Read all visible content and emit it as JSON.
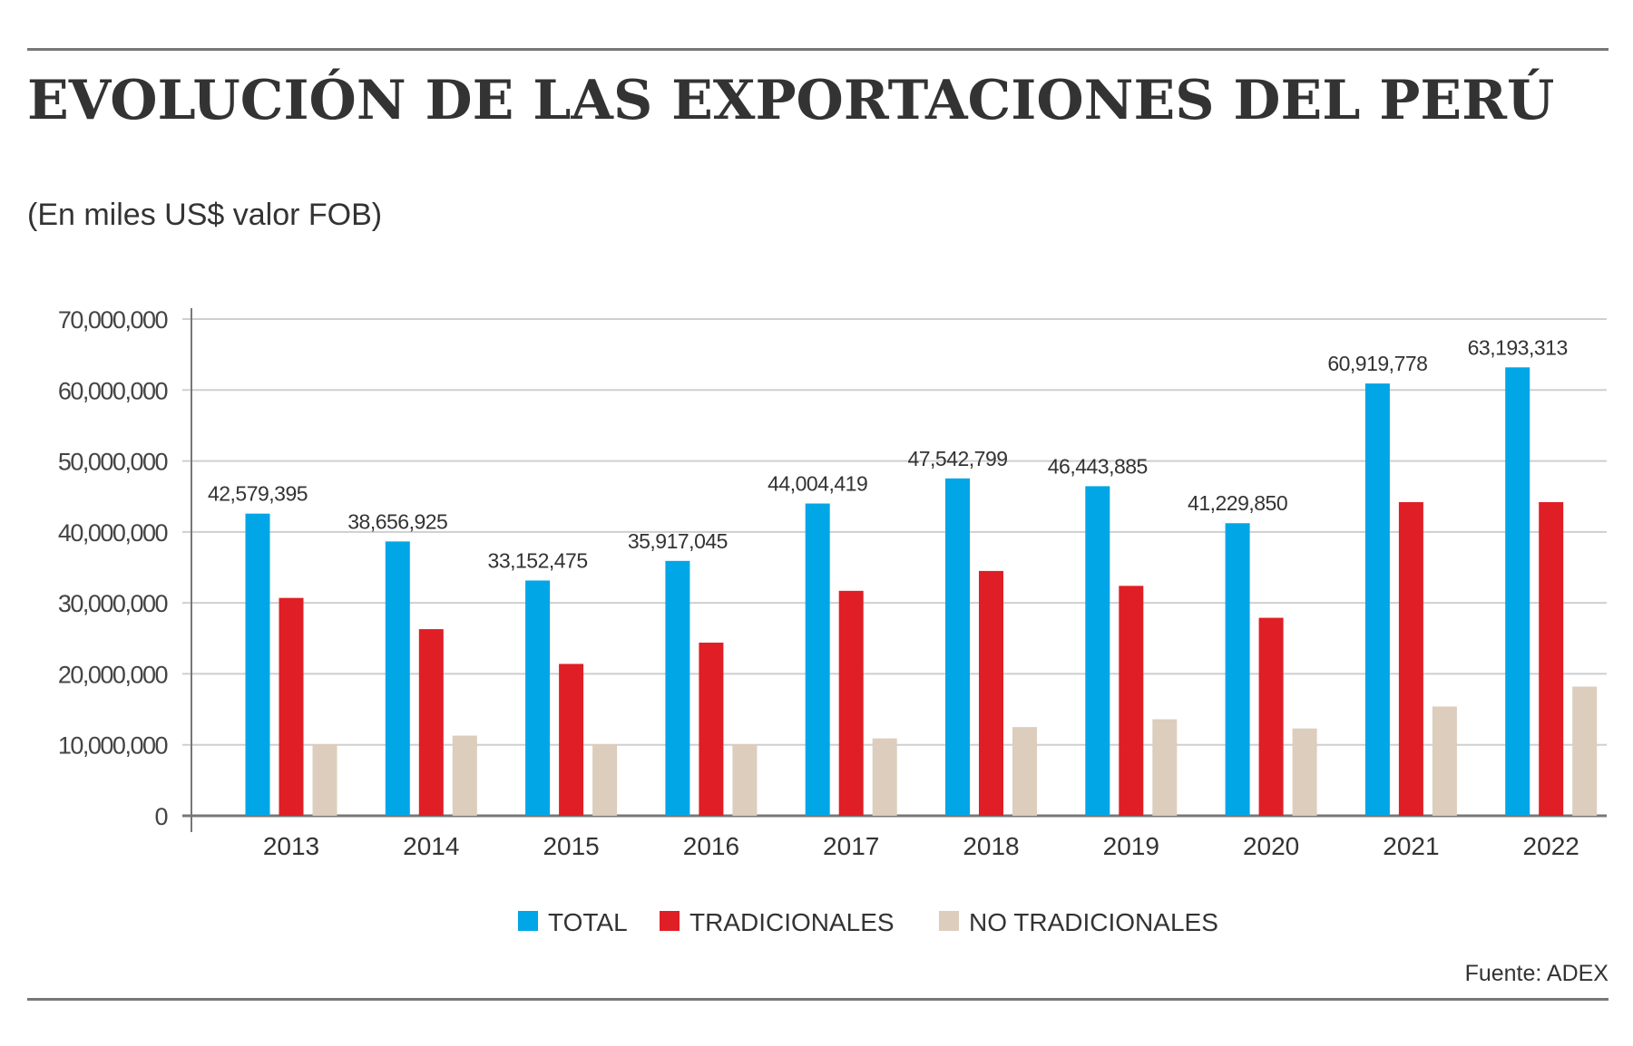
{
  "title": "EVOLUCIÓN DE LAS EXPORTACIONES DEL PERÚ",
  "subtitle": "(En miles US$ valor FOB)",
  "source": "Fuente: ADEX",
  "colors": {
    "total": "#00a6e6",
    "tradicionales": "#e01e26",
    "no_tradicionales": "#dccdbd"
  },
  "chart_data": {
    "type": "bar",
    "title": "EVOLUCIÓN DE LAS EXPORTACIONES DEL PERÚ",
    "ylabel": "(En miles US$ valor FOB)",
    "xlabel": "",
    "ylim": [
      0,
      70000000
    ],
    "yticks": [
      0,
      10000000,
      20000000,
      30000000,
      40000000,
      50000000,
      60000000,
      70000000
    ],
    "ytick_labels": [
      "0",
      "10,000,000",
      "20,000,000",
      "30,000,000",
      "40,000,000",
      "50,000,000",
      "60,000,000",
      "70,000,000"
    ],
    "grid": true,
    "legend": "bottom",
    "categories": [
      "2013",
      "2014",
      "2015",
      "2016",
      "2017",
      "2018",
      "2019",
      "2020",
      "2021",
      "2022"
    ],
    "series": [
      {
        "name": "TOTAL",
        "values": [
          42579395,
          38656925,
          33152475,
          35917045,
          44004419,
          47542799,
          46443885,
          41229850,
          60919778,
          63193313
        ],
        "labels": [
          "42,579,395",
          "38,656,925",
          "33,152,475",
          "35,917,045",
          "44,004,419",
          "47,542,799",
          "46,443,885",
          "41,229,850",
          "60,919,778",
          "63,193,313"
        ]
      },
      {
        "name": "TRADICIONALES",
        "values": [
          30700000,
          26300000,
          21400000,
          24400000,
          31700000,
          34500000,
          32400000,
          27900000,
          44200000,
          44200000
        ]
      },
      {
        "name": "NO TRADICIONALES",
        "values": [
          10100000,
          11300000,
          10100000,
          10100000,
          10900000,
          12500000,
          13600000,
          12300000,
          15400000,
          18200000
        ]
      }
    ]
  }
}
